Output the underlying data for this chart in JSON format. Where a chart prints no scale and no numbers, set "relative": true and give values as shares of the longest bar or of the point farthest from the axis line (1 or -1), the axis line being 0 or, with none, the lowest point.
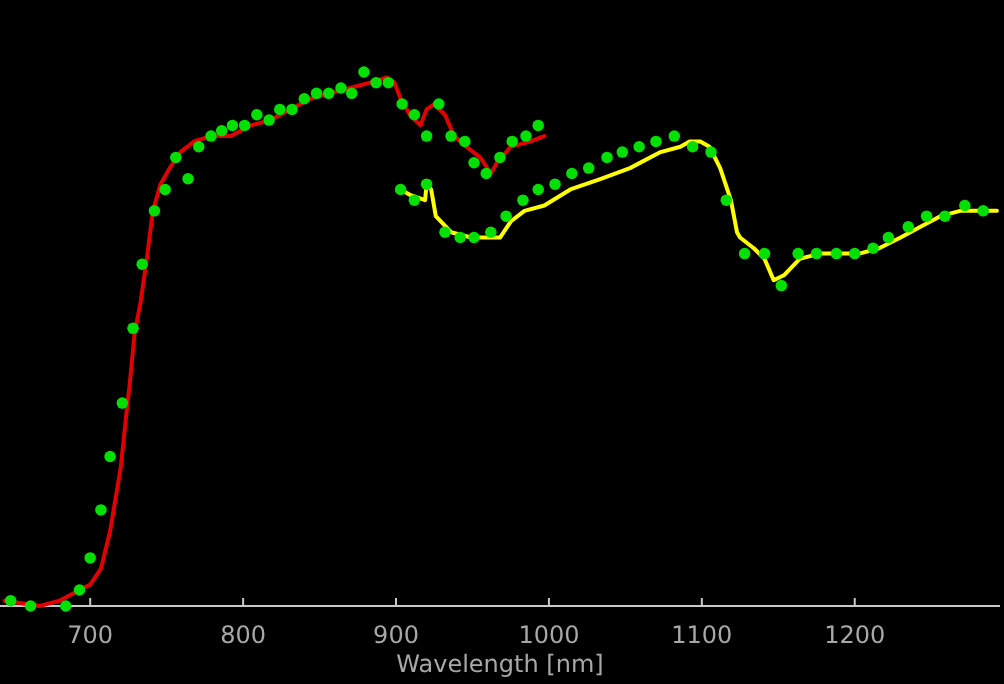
{
  "chart_data": {
    "type": "line",
    "relative": true,
    "xlabel": "Wavelength [nm]",
    "xlim": [
      641,
      1295
    ],
    "xticks": [
      700,
      800,
      900,
      1000,
      1100,
      1200
    ],
    "series": [
      {
        "color": "#e00000",
        "x": [
          644,
          667,
          680,
          693,
          700,
          707,
          713,
          720,
          724,
          726,
          729,
          733,
          737,
          741,
          746,
          752,
          759,
          768,
          779,
          792,
          805,
          818,
          831,
          844,
          857,
          870,
          883,
          894,
          899,
          903,
          909,
          916,
          920,
          925,
          932,
          938,
          946,
          955,
          962,
          966,
          975,
          988,
          997
        ],
        "values": [
          0.01,
          0,
          0.01,
          0.03,
          0.04,
          0.07,
          0.14,
          0.26,
          0.37,
          0.42,
          0.51,
          0.57,
          0.65,
          0.74,
          0.79,
          0.82,
          0.85,
          0.87,
          0.88,
          0.88,
          0.9,
          0.91,
          0.93,
          0.95,
          0.96,
          0.97,
          0.98,
          0.99,
          0.98,
          0.95,
          0.92,
          0.9,
          0.93,
          0.94,
          0.92,
          0.88,
          0.86,
          0.84,
          0.81,
          0.83,
          0.86,
          0.87,
          0.88
        ]
      },
      {
        "color": "#ffff00",
        "x": [
          903,
          909,
          919,
          920,
          923,
          926,
          936,
          949,
          968,
          975,
          984,
          997,
          1014,
          1034,
          1053,
          1073,
          1086,
          1092,
          1099,
          1105,
          1112,
          1119,
          1123,
          1125,
          1134,
          1141,
          1147,
          1154,
          1164,
          1177,
          1203,
          1216,
          1230,
          1243,
          1256,
          1269,
          1282,
          1293
        ],
        "values": [
          0.78,
          0.77,
          0.76,
          0.79,
          0.78,
          0.73,
          0.7,
          0.69,
          0.69,
          0.72,
          0.74,
          0.75,
          0.78,
          0.8,
          0.82,
          0.85,
          0.86,
          0.87,
          0.87,
          0.86,
          0.82,
          0.76,
          0.7,
          0.69,
          0.67,
          0.65,
          0.61,
          0.62,
          0.65,
          0.66,
          0.66,
          0.67,
          0.69,
          0.71,
          0.73,
          0.74,
          0.74,
          0.74
        ]
      },
      {
        "type": "scatter",
        "color": "#00e000",
        "marker": "circle",
        "x": [
          648,
          661,
          684,
          693,
          700,
          707,
          713,
          721,
          728,
          734,
          742,
          749,
          756,
          764,
          771,
          779,
          786,
          793,
          801,
          809,
          817,
          824,
          832,
          840,
          848,
          856,
          864,
          871,
          879,
          887,
          895,
          903,
          904,
          912,
          912,
          920,
          920,
          928,
          932,
          936,
          942,
          945,
          951,
          951,
          959,
          962,
          968,
          972,
          976,
          983,
          985,
          993,
          993,
          1004,
          1015,
          1026,
          1038,
          1048,
          1059,
          1070,
          1082,
          1094,
          1106,
          1116,
          1128,
          1141,
          1152,
          1163,
          1175,
          1188,
          1200,
          1212,
          1222,
          1235,
          1247,
          1259,
          1272,
          1284
        ],
        "values": [
          0.01,
          0,
          0,
          0.03,
          0.09,
          0.18,
          0.28,
          0.38,
          0.52,
          0.64,
          0.74,
          0.78,
          0.84,
          0.8,
          0.86,
          0.88,
          0.89,
          0.9,
          0.9,
          0.92,
          0.91,
          0.93,
          0.93,
          0.95,
          0.96,
          0.96,
          0.97,
          0.96,
          1,
          0.98,
          0.98,
          0.78,
          0.94,
          0.92,
          0.76,
          0.88,
          0.79,
          0.94,
          0.7,
          0.88,
          0.69,
          0.87,
          0.83,
          0.69,
          0.81,
          0.7,
          0.84,
          0.73,
          0.87,
          0.76,
          0.88,
          0.9,
          0.78,
          0.79,
          0.81,
          0.82,
          0.84,
          0.85,
          0.86,
          0.87,
          0.88,
          0.86,
          0.85,
          0.76,
          0.66,
          0.66,
          0.6,
          0.66,
          0.66,
          0.66,
          0.66,
          0.67,
          0.69,
          0.71,
          0.73,
          0.73,
          0.75,
          0.74
        ]
      }
    ]
  }
}
